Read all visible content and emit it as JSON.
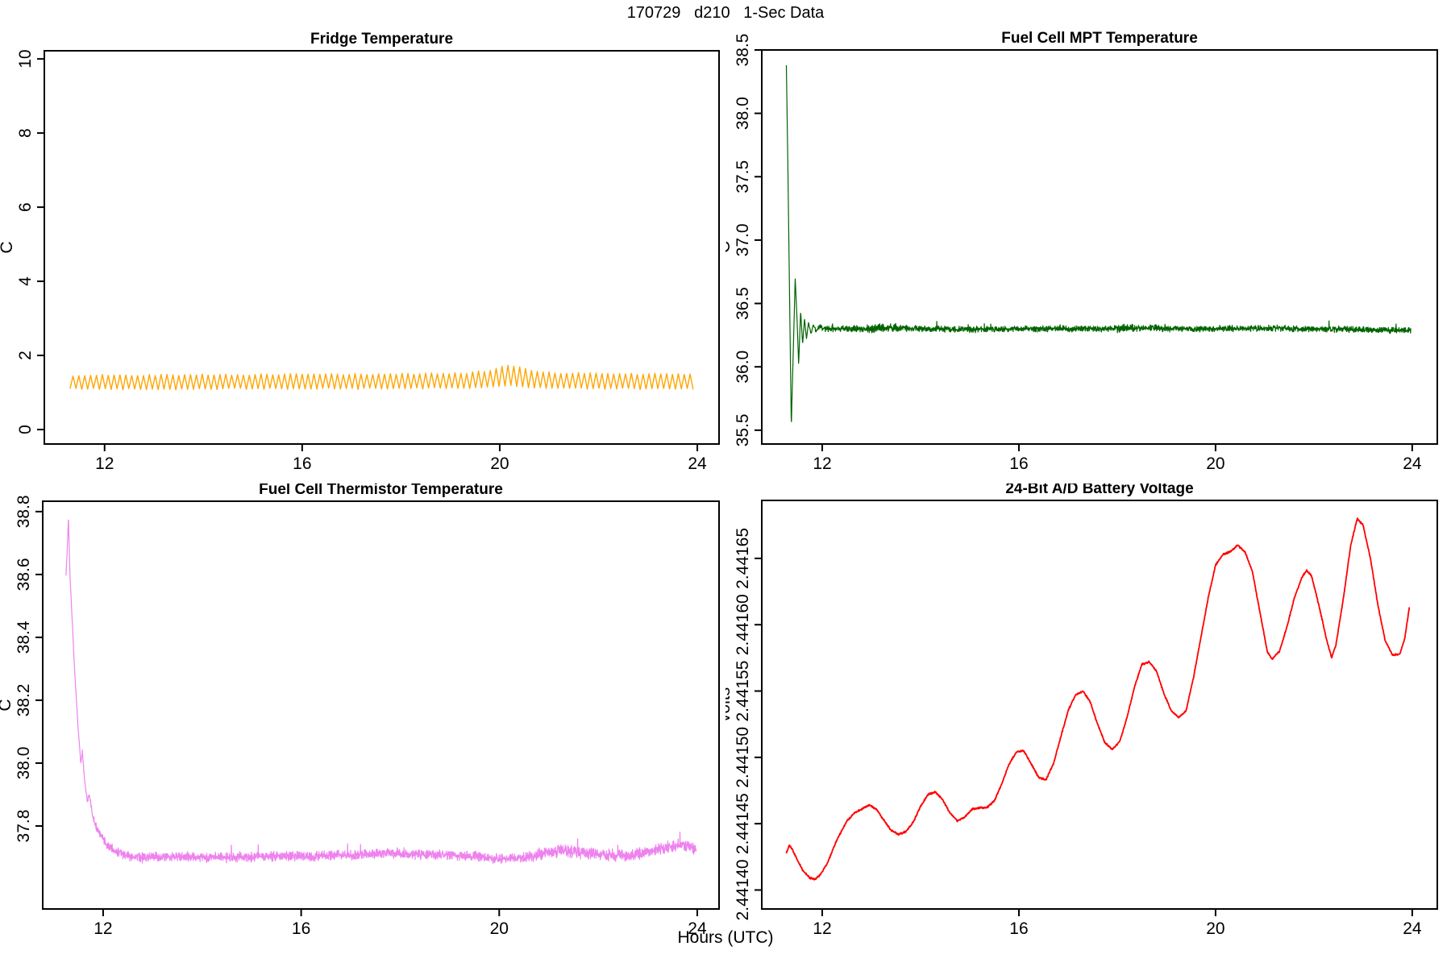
{
  "figure": {
    "title": "170729   d210   1-Sec Data",
    "xlabel": "Hours (UTC)"
  },
  "chart_data": [
    {
      "id": "fridge-temperature",
      "type": "line",
      "title": "Fridge Temperature",
      "ylabel": "C",
      "color": "#FFA500",
      "stroke_width": 1.4,
      "x_range": [
        10.78,
        24.44
      ],
      "y_range": [
        -0.39,
        10.22
      ],
      "x_ticks": {
        "values": [
          12,
          16,
          20,
          24
        ],
        "labels": [
          "12",
          "16",
          "20",
          "24"
        ]
      },
      "y_ticks": {
        "values": [
          0,
          2,
          4,
          6,
          8,
          10
        ],
        "labels": [
          "0",
          "2",
          "4",
          "6",
          "8",
          "10"
        ]
      },
      "series": {
        "generator": "zigzag",
        "t0": 11.3,
        "t1": 23.96,
        "period": 0.119,
        "jitter": 0.02,
        "peak_env": [
          [
            11.3,
            1.44
          ],
          [
            12,
            1.47
          ],
          [
            14,
            1.48
          ],
          [
            16,
            1.49
          ],
          [
            18,
            1.5
          ],
          [
            19.4,
            1.53
          ],
          [
            19.8,
            1.6
          ],
          [
            20.15,
            1.74
          ],
          [
            20.35,
            1.7
          ],
          [
            20.7,
            1.58
          ],
          [
            21.2,
            1.53
          ],
          [
            22,
            1.51
          ],
          [
            23,
            1.5
          ],
          [
            23.96,
            1.49
          ]
        ],
        "trough_env": [
          [
            11.3,
            1.1
          ],
          [
            13,
            1.09
          ],
          [
            15,
            1.1
          ],
          [
            17,
            1.1
          ],
          [
            19.4,
            1.12
          ],
          [
            20.15,
            1.18
          ],
          [
            20.7,
            1.13
          ],
          [
            22,
            1.1
          ],
          [
            23.96,
            1.09
          ]
        ]
      }
    },
    {
      "id": "fuel-cell-mpt-temperature",
      "type": "line",
      "title": "Fuel Cell MPT Temperature",
      "ylabel": "C",
      "color": "#006400",
      "stroke_width": 1.2,
      "x_range": [
        10.77,
        24.51
      ],
      "y_range": [
        35.391,
        38.5
      ],
      "x_ticks": {
        "values": [
          12,
          16,
          20,
          24
        ],
        "labels": [
          "12",
          "16",
          "20",
          "24"
        ]
      },
      "y_ticks": {
        "values": [
          35.5,
          36.0,
          36.5,
          37.0,
          37.5,
          38.0,
          38.5
        ],
        "labels": [
          "35.5",
          "36.0",
          "36.5",
          "37.0",
          "37.5",
          "38.0",
          "38.5"
        ]
      },
      "series": {
        "generator": "noisy",
        "t0": 11.27,
        "t1": 23.97,
        "n": 2600,
        "noise": 0.028,
        "noise_ramp": [
          11.7,
          11.95
        ],
        "ramp_min": 0.06,
        "noise_extra": [
          [
            12.9,
            13.6,
            0.008
          ],
          [
            17.9,
            18.5,
            0.006
          ]
        ],
        "spikes": {
          "prob": 0.012,
          "max": 0.045,
          "sign": 1
        },
        "control": [
          [
            11.27,
            38.38
          ],
          [
            11.3,
            37.6
          ],
          [
            11.34,
            36.4
          ],
          [
            11.37,
            35.53
          ],
          [
            11.41,
            36.1
          ],
          [
            11.45,
            36.7
          ],
          [
            11.49,
            36.35
          ],
          [
            11.52,
            36.02
          ],
          [
            11.56,
            36.44
          ],
          [
            11.6,
            36.18
          ],
          [
            11.64,
            36.38
          ],
          [
            11.68,
            36.22
          ],
          [
            11.72,
            36.35
          ],
          [
            11.77,
            36.26
          ],
          [
            11.82,
            36.33
          ],
          [
            11.88,
            36.28
          ],
          [
            11.95,
            36.32
          ],
          [
            12.05,
            36.3
          ],
          [
            13.0,
            36.3
          ],
          [
            13.4,
            36.31
          ],
          [
            14.0,
            36.3
          ],
          [
            15.0,
            36.295
          ],
          [
            16.0,
            36.3
          ],
          [
            17.0,
            36.3
          ],
          [
            18.0,
            36.3
          ],
          [
            18.3,
            36.31
          ],
          [
            19.0,
            36.3
          ],
          [
            20.0,
            36.3
          ],
          [
            21.0,
            36.305
          ],
          [
            22.0,
            36.3
          ],
          [
            23.0,
            36.295
          ],
          [
            23.5,
            36.29
          ],
          [
            23.97,
            36.285
          ]
        ]
      }
    },
    {
      "id": "fuel-cell-thermistor-temperature",
      "type": "line",
      "title": "Fuel Cell Thermistor Temperature",
      "ylabel": "C",
      "color": "#EE82EE",
      "stroke_width": 1.2,
      "x_range": [
        10.78,
        24.44
      ],
      "y_range": [
        37.536,
        38.833
      ],
      "x_ticks": {
        "values": [
          12,
          16,
          20,
          24
        ],
        "labels": [
          "12",
          "16",
          "20",
          "24"
        ]
      },
      "y_ticks": {
        "values": [
          37.8,
          38.0,
          38.2,
          38.4,
          38.6,
          38.8
        ],
        "labels": [
          "37.8",
          "38.0",
          "38.2",
          "38.4",
          "38.6",
          "38.8"
        ]
      },
      "series": {
        "generator": "noisy",
        "t0": 11.25,
        "t1": 23.98,
        "n": 2700,
        "noise": 0.018,
        "noise_ramp": [
          11.45,
          12.1
        ],
        "ramp_min": 0.3,
        "noise_extra": [
          [
            20.6,
            24.0,
            0.004
          ]
        ],
        "spikes": {
          "prob": 0.006,
          "max": 0.04,
          "sign": 1
        },
        "control": [
          [
            11.25,
            38.6
          ],
          [
            11.27,
            38.66
          ],
          [
            11.3,
            38.78
          ],
          [
            11.33,
            38.6
          ],
          [
            11.38,
            38.44
          ],
          [
            11.43,
            38.28
          ],
          [
            11.5,
            38.1
          ],
          [
            11.55,
            38.0
          ],
          [
            11.58,
            38.04
          ],
          [
            11.62,
            37.95
          ],
          [
            11.68,
            37.88
          ],
          [
            11.72,
            37.9
          ],
          [
            11.78,
            37.84
          ],
          [
            11.85,
            37.8
          ],
          [
            11.95,
            37.77
          ],
          [
            12.1,
            37.735
          ],
          [
            12.3,
            37.715
          ],
          [
            12.6,
            37.7
          ],
          [
            13.0,
            37.7
          ],
          [
            13.5,
            37.703
          ],
          [
            14.0,
            37.7
          ],
          [
            14.5,
            37.7
          ],
          [
            15.0,
            37.702
          ],
          [
            15.5,
            37.703
          ],
          [
            16.0,
            37.703
          ],
          [
            16.5,
            37.705
          ],
          [
            17.0,
            37.708
          ],
          [
            17.5,
            37.712
          ],
          [
            17.9,
            37.713
          ],
          [
            18.3,
            37.71
          ],
          [
            18.7,
            37.707
          ],
          [
            19.1,
            37.706
          ],
          [
            19.5,
            37.705
          ],
          [
            19.8,
            37.7
          ],
          [
            20.0,
            37.695
          ],
          [
            20.3,
            37.697
          ],
          [
            20.6,
            37.702
          ],
          [
            20.9,
            37.712
          ],
          [
            21.2,
            37.72
          ],
          [
            21.5,
            37.718
          ],
          [
            21.8,
            37.714
          ],
          [
            22.1,
            37.711
          ],
          [
            22.4,
            37.708
          ],
          [
            22.65,
            37.706
          ],
          [
            22.9,
            37.713
          ],
          [
            23.2,
            37.725
          ],
          [
            23.45,
            37.735
          ],
          [
            23.7,
            37.738
          ],
          [
            23.85,
            37.733
          ],
          [
            23.98,
            37.726
          ]
        ]
      }
    },
    {
      "id": "battery-voltage",
      "type": "line",
      "title": "24-Bit A/D Battery Voltage",
      "ylabel": "volts",
      "color": "#FF0000",
      "stroke_width": 1.8,
      "x_range": [
        10.77,
        24.51
      ],
      "y_range": [
        2.4413857,
        2.4416937
      ],
      "x_ticks": {
        "values": [
          12,
          16,
          20,
          24
        ],
        "labels": [
          "12",
          "16",
          "20",
          "24"
        ]
      },
      "y_ticks": {
        "values": [
          2.4414,
          2.44145,
          2.4415,
          2.44155,
          2.4416,
          2.44165
        ],
        "labels": [
          "2.44140",
          "2.44145",
          "2.44150",
          "2.44155",
          "2.44160",
          "2.44165"
        ]
      },
      "series": {
        "generator": "noisy",
        "t0": 11.27,
        "t1": 23.94,
        "n": 2200,
        "noise": 8e-07,
        "control": [
          [
            11.27,
            2.441428
          ],
          [
            11.33,
            2.441434
          ],
          [
            11.4,
            2.44143
          ],
          [
            11.5,
            2.441422
          ],
          [
            11.62,
            2.441414
          ],
          [
            11.75,
            2.441409
          ],
          [
            11.85,
            2.441408
          ],
          [
            11.95,
            2.441411
          ],
          [
            12.1,
            2.44142
          ],
          [
            12.3,
            2.441438
          ],
          [
            12.5,
            2.441452
          ],
          [
            12.65,
            2.441458
          ],
          [
            12.8,
            2.441461
          ],
          [
            12.95,
            2.441464
          ],
          [
            13.1,
            2.441461
          ],
          [
            13.25,
            2.441453
          ],
          [
            13.4,
            2.441445
          ],
          [
            13.55,
            2.441442
          ],
          [
            13.7,
            2.441444
          ],
          [
            13.85,
            2.441451
          ],
          [
            14.0,
            2.441463
          ],
          [
            14.15,
            2.441472
          ],
          [
            14.3,
            2.441474
          ],
          [
            14.45,
            2.441468
          ],
          [
            14.6,
            2.441458
          ],
          [
            14.75,
            2.441452
          ],
          [
            14.9,
            2.441455
          ],
          [
            15.05,
            2.441461
          ],
          [
            15.2,
            2.441462
          ],
          [
            15.35,
            2.441462
          ],
          [
            15.5,
            2.441467
          ],
          [
            15.65,
            2.44148
          ],
          [
            15.8,
            2.441495
          ],
          [
            15.95,
            2.441504
          ],
          [
            16.1,
            2.441505
          ],
          [
            16.25,
            2.441495
          ],
          [
            16.4,
            2.441485
          ],
          [
            16.55,
            2.441483
          ],
          [
            16.7,
            2.441495
          ],
          [
            16.85,
            2.441515
          ],
          [
            17.0,
            2.441535
          ],
          [
            17.15,
            2.441547
          ],
          [
            17.3,
            2.44155
          ],
          [
            17.45,
            2.441542
          ],
          [
            17.6,
            2.441525
          ],
          [
            17.75,
            2.441511
          ],
          [
            17.9,
            2.441506
          ],
          [
            18.05,
            2.441512
          ],
          [
            18.2,
            2.44153
          ],
          [
            18.35,
            2.441553
          ],
          [
            18.5,
            2.44157
          ],
          [
            18.65,
            2.441572
          ],
          [
            18.8,
            2.441565
          ],
          [
            18.95,
            2.441548
          ],
          [
            19.1,
            2.441535
          ],
          [
            19.25,
            2.44153
          ],
          [
            19.4,
            2.441535
          ],
          [
            19.55,
            2.44156
          ],
          [
            19.7,
            2.44159
          ],
          [
            19.85,
            2.44162
          ],
          [
            20.0,
            2.441645
          ],
          [
            20.15,
            2.441653
          ],
          [
            20.3,
            2.441655
          ],
          [
            20.45,
            2.44166
          ],
          [
            20.6,
            2.441655
          ],
          [
            20.75,
            2.44164
          ],
          [
            20.9,
            2.44161
          ],
          [
            21.05,
            2.44158
          ],
          [
            21.15,
            2.441574
          ],
          [
            21.3,
            2.44158
          ],
          [
            21.45,
            2.441598
          ],
          [
            21.6,
            2.44162
          ],
          [
            21.75,
            2.441635
          ],
          [
            21.85,
            2.441641
          ],
          [
            21.95,
            2.441637
          ],
          [
            22.1,
            2.441615
          ],
          [
            22.25,
            2.44159
          ],
          [
            22.36,
            2.441575
          ],
          [
            22.45,
            2.441585
          ],
          [
            22.6,
            2.44162
          ],
          [
            22.75,
            2.44166
          ],
          [
            22.88,
            2.44168
          ],
          [
            23.0,
            2.441675
          ],
          [
            23.15,
            2.44165
          ],
          [
            23.3,
            2.441615
          ],
          [
            23.45,
            2.441588
          ],
          [
            23.6,
            2.441577
          ],
          [
            23.75,
            2.441578
          ],
          [
            23.85,
            2.44159
          ],
          [
            23.94,
            2.441613
          ]
        ]
      }
    }
  ]
}
